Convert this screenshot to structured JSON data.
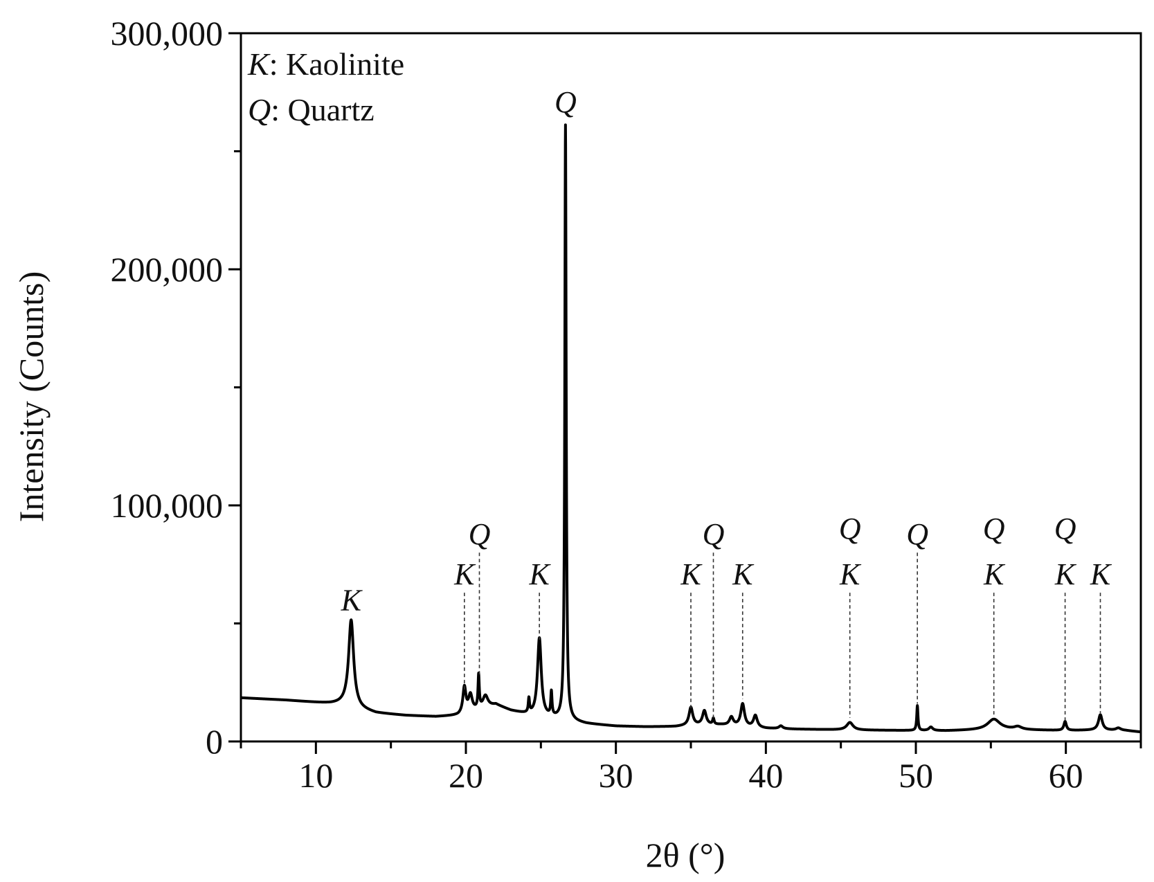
{
  "chart_data": {
    "type": "line",
    "title": "",
    "xlabel": "2θ (°)",
    "ylabel": "Intensity (Counts)",
    "xlim": [
      5,
      65
    ],
    "ylim": [
      0,
      300000
    ],
    "x_ticks": [
      10,
      20,
      30,
      40,
      50,
      60
    ],
    "x_tick_labels": [
      "10",
      "20",
      "30",
      "40",
      "50",
      "60"
    ],
    "y_ticks": [
      0,
      100000,
      200000,
      300000
    ],
    "y_tick_labels": [
      "0",
      "100,000",
      "200,000",
      "300,000"
    ],
    "grid": false,
    "legend_position": "top-left",
    "legend": [
      {
        "symbol": "K",
        "label": ": Kaolinite"
      },
      {
        "symbol": "Q",
        "label": ": Quartz"
      }
    ],
    "series": [
      {
        "color": "#000000",
        "baseline": [
          [
            5,
            18500
          ],
          [
            8,
            17500
          ],
          [
            10,
            16500
          ],
          [
            11,
            16000
          ],
          [
            12,
            15800
          ],
          [
            13,
            13500
          ],
          [
            14,
            12000
          ],
          [
            16,
            11000
          ],
          [
            18,
            10500
          ],
          [
            19.5,
            11000
          ],
          [
            22,
            15500
          ],
          [
            23,
            13000
          ],
          [
            24,
            11500
          ],
          [
            26,
            9500
          ],
          [
            27,
            8500
          ],
          [
            28,
            7500
          ],
          [
            30,
            6500
          ],
          [
            32,
            6200
          ],
          [
            34,
            6300
          ],
          [
            35,
            6800
          ],
          [
            37,
            7000
          ],
          [
            40,
            5500
          ],
          [
            42,
            5200
          ],
          [
            44,
            5000
          ],
          [
            46,
            4800
          ],
          [
            48,
            4700
          ],
          [
            50,
            4600
          ],
          [
            52,
            4500
          ],
          [
            54,
            4800
          ],
          [
            56,
            5000
          ],
          [
            58,
            4800
          ],
          [
            60,
            4600
          ],
          [
            62,
            4800
          ],
          [
            64,
            4600
          ],
          [
            65,
            4000
          ]
        ],
        "peaks": [
          {
            "x": 12.35,
            "height": 36500,
            "width": 0.2
          },
          {
            "x": 19.9,
            "height": 11000,
            "width": 0.12
          },
          {
            "x": 20.3,
            "height": 7000,
            "width": 0.15
          },
          {
            "x": 20.85,
            "height": 14000,
            "width": 0.05
          },
          {
            "x": 21.3,
            "height": 5000,
            "width": 0.2
          },
          {
            "x": 24.2,
            "height": 6000,
            "width": 0.05
          },
          {
            "x": 24.9,
            "height": 33000,
            "width": 0.15
          },
          {
            "x": 25.7,
            "height": 10000,
            "width": 0.05
          },
          {
            "x": 26.64,
            "height": 252000,
            "width": 0.055
          },
          {
            "x": 35.0,
            "height": 7500,
            "width": 0.15
          },
          {
            "x": 35.9,
            "height": 6000,
            "width": 0.15
          },
          {
            "x": 36.5,
            "height": 2500,
            "width": 0.06
          },
          {
            "x": 37.7,
            "height": 3500,
            "width": 0.15
          },
          {
            "x": 38.45,
            "height": 9500,
            "width": 0.15
          },
          {
            "x": 39.3,
            "height": 5000,
            "width": 0.15
          },
          {
            "x": 41.0,
            "height": 1200,
            "width": 0.15
          },
          {
            "x": 45.6,
            "height": 3200,
            "width": 0.25
          },
          {
            "x": 50.1,
            "height": 10500,
            "width": 0.05
          },
          {
            "x": 51.0,
            "height": 1500,
            "width": 0.15
          },
          {
            "x": 55.2,
            "height": 4500,
            "width": 0.5
          },
          {
            "x": 56.8,
            "height": 1200,
            "width": 0.3
          },
          {
            "x": 59.95,
            "height": 3800,
            "width": 0.1
          },
          {
            "x": 62.3,
            "height": 6500,
            "width": 0.15
          },
          {
            "x": 63.5,
            "height": 1000,
            "width": 0.2
          }
        ]
      }
    ],
    "annotations": [
      {
        "x": 12.35,
        "labels": [
          "K"
        ],
        "line_top": 52000,
        "line_bottom": 54000
      },
      {
        "x": 19.9,
        "labels": [
          "K"
        ],
        "line_top": 63000,
        "line_bottom": 22000
      },
      {
        "x": 20.9,
        "labels": [
          "Q"
        ],
        "line_top": 80000,
        "line_bottom": 28000
      },
      {
        "x": 24.9,
        "labels": [
          "K"
        ],
        "line_top": 63000,
        "line_bottom": 43000
      },
      {
        "x": 26.64,
        "labels": [
          "Q"
        ],
        "line_top": 263000,
        "line_bottom": 263000
      },
      {
        "x": 35.0,
        "labels": [
          "K"
        ],
        "line_top": 63000,
        "line_bottom": 14000
      },
      {
        "x": 36.5,
        "labels": [
          "Q"
        ],
        "line_top": 80000,
        "line_bottom": 10000
      },
      {
        "x": 38.45,
        "labels": [
          "K"
        ],
        "line_top": 63000,
        "line_bottom": 18000
      },
      {
        "x": 45.6,
        "labels": [
          "Q",
          "K"
        ],
        "line_top": 63000,
        "line_bottom": 10000
      },
      {
        "x": 50.1,
        "labels": [
          "Q"
        ],
        "line_top": 80000,
        "line_bottom": 16000
      },
      {
        "x": 55.2,
        "labels": [
          "Q",
          "K"
        ],
        "line_top": 63000,
        "line_bottom": 11000
      },
      {
        "x": 59.95,
        "labels": [
          "Q",
          "K"
        ],
        "line_top": 63000,
        "line_bottom": 9000
      },
      {
        "x": 62.3,
        "labels": [
          "K"
        ],
        "line_top": 63000,
        "line_bottom": 12000
      }
    ]
  }
}
